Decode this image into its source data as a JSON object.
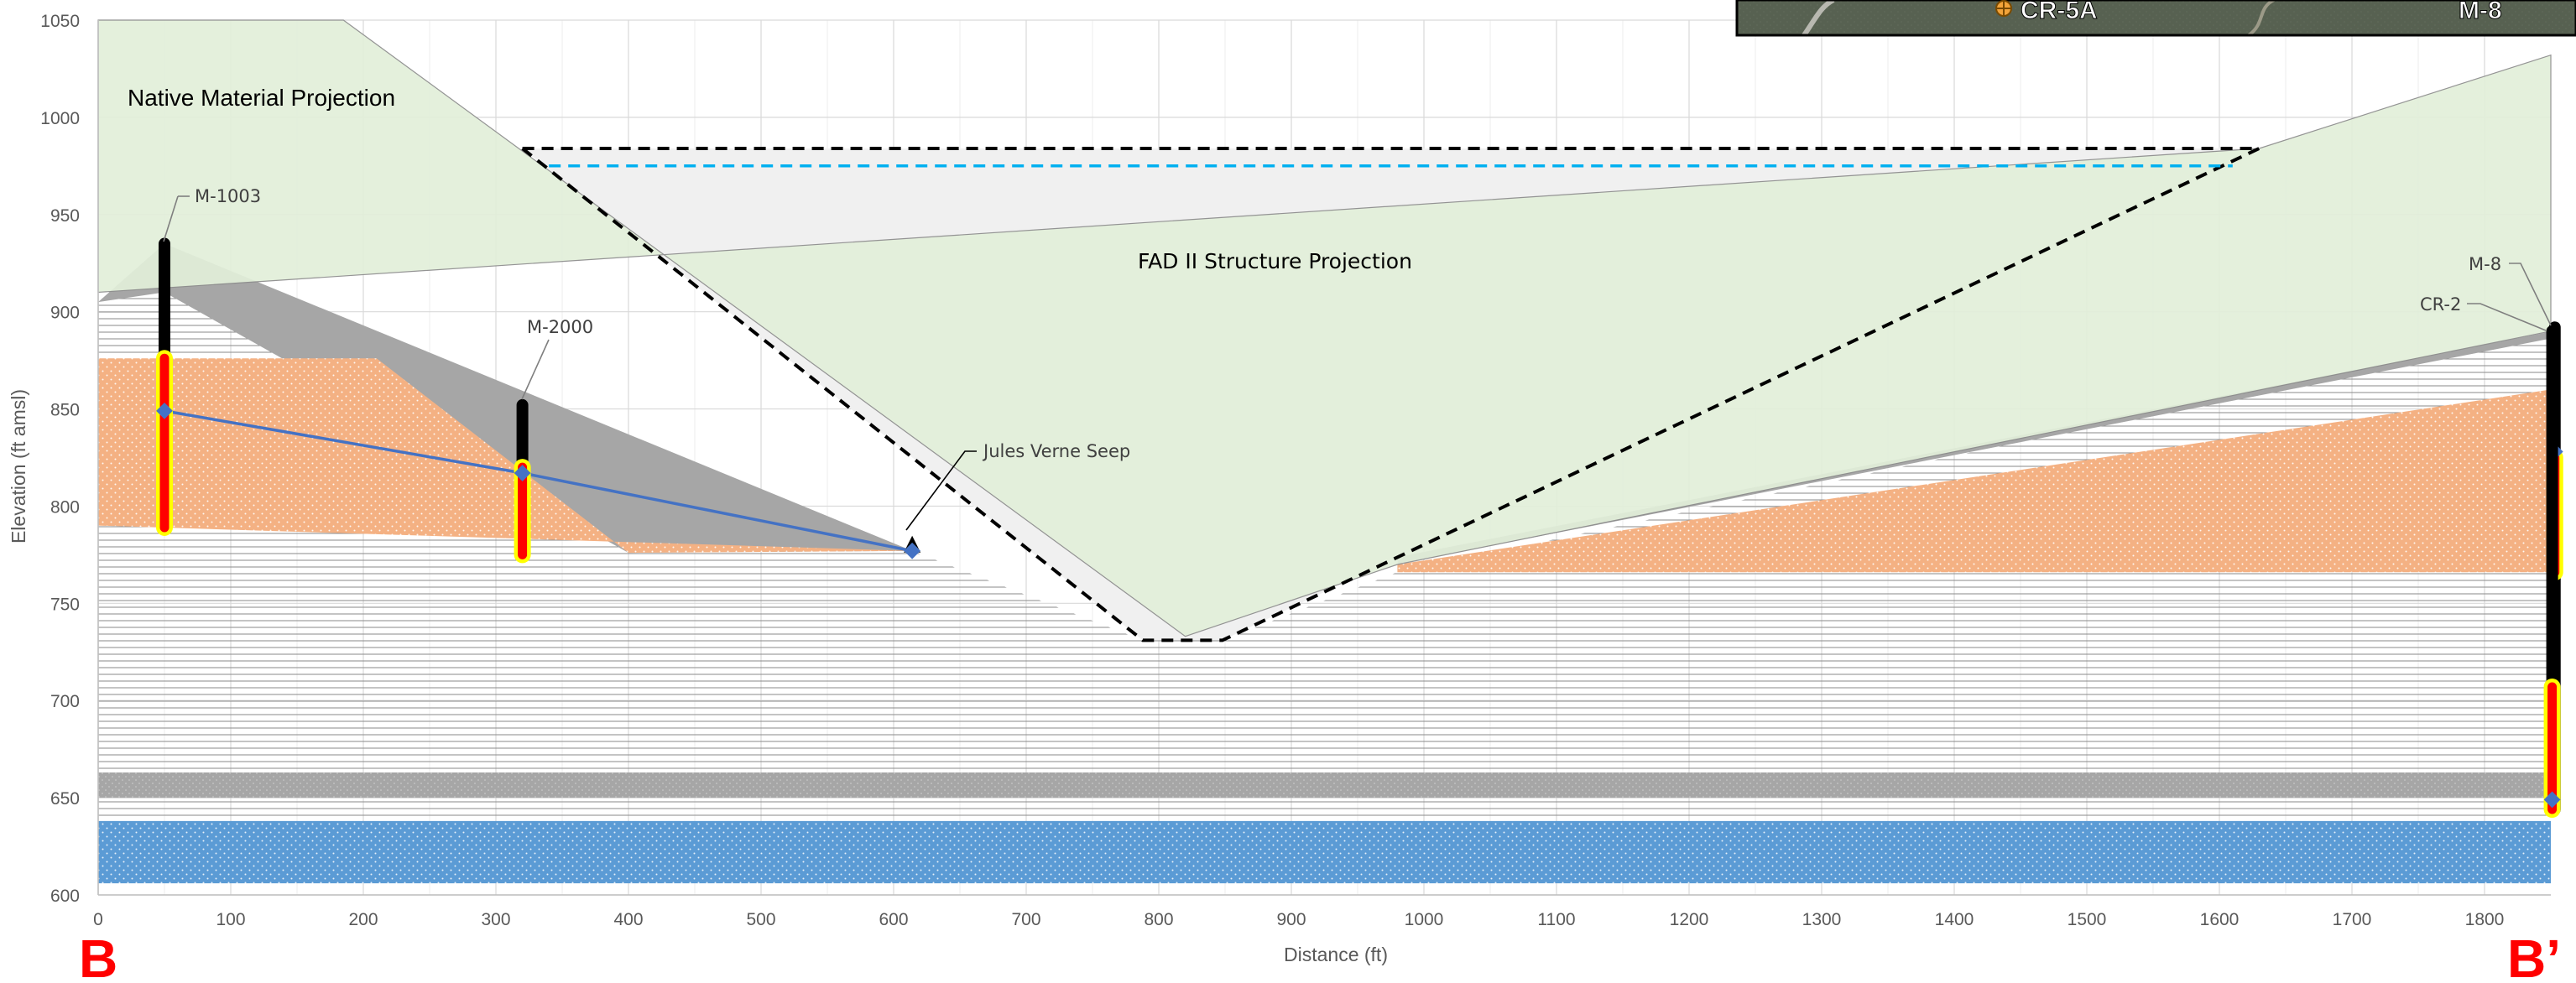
{
  "chart_data": {
    "type": "cross-section",
    "xlabel": "Distance (ft)",
    "ylabel": "Elevation (ft amsl)",
    "xlim": [
      0,
      1850
    ],
    "ylim": [
      600,
      1050
    ],
    "x_ticks": [
      0,
      100,
      200,
      300,
      400,
      500,
      600,
      700,
      800,
      900,
      1000,
      1100,
      1200,
      1300,
      1400,
      1500,
      1600,
      1700,
      1800
    ],
    "y_ticks": [
      600,
      650,
      700,
      750,
      800,
      850,
      900,
      950,
      1000,
      1050
    ],
    "grid": true,
    "section_start_label": "B",
    "section_end_label": "B’",
    "annotations": {
      "native_projection": "Native Material Projection",
      "fad_projection": "FAD II Structure Projection",
      "seep": "Jules Verne Seep"
    },
    "wells": [
      {
        "name": "M-1003",
        "x": 50,
        "top": 935,
        "bottom": 789,
        "screen_top": 876,
        "screen_bottom": 789,
        "water_level": 849
      },
      {
        "name": "M-2000",
        "x": 320,
        "top": 852,
        "bottom": 775,
        "screen_top": 820,
        "screen_bottom": 775,
        "water_level": 817
      },
      {
        "name": "M-8",
        "x": 1853,
        "top": 892,
        "bottom": 644,
        "screen_top": 825,
        "screen_bottom": 766,
        "water_level": 828
      },
      {
        "name": "CR-2",
        "x": 1851,
        "top": 890,
        "bottom": 644,
        "screen_top": 707,
        "screen_bottom": 644,
        "water_level": 649
      }
    ],
    "seep_point": {
      "x": 614,
      "y": 777
    },
    "water_table": [
      [
        50,
        849
      ],
      [
        320,
        817
      ],
      [
        614,
        777
      ]
    ],
    "fad_outline": [
      [
        320,
        984
      ],
      [
        788,
        731
      ],
      [
        848,
        731
      ],
      [
        1630,
        984
      ]
    ],
    "fad_water_line": [
      [
        340,
        975
      ],
      [
        1610,
        975
      ]
    ],
    "native_material": [
      [
        0,
        910
      ],
      [
        0,
        1050
      ],
      [
        185,
        1050
      ],
      [
        820,
        733
      ],
      [
        980,
        770
      ],
      [
        1850,
        890
      ],
      [
        1850,
        1032
      ],
      [
        1630,
        984
      ]
    ],
    "units": [
      {
        "name": "orange sand",
        "top": [
          [
            0,
            876
          ],
          [
            210,
            876
          ],
          [
            400,
            776
          ],
          [
            614,
            777
          ]
        ],
        "bottom": [
          [
            0,
            790
          ],
          [
            614,
            777
          ]
        ]
      },
      {
        "name": "orange sand east",
        "top": [
          [
            980,
            770
          ],
          [
            1850,
            860
          ]
        ],
        "bottom": [
          [
            980,
            766
          ],
          [
            1850,
            766
          ]
        ]
      },
      {
        "name": "gray clay",
        "top": [
          [
            0,
            663
          ],
          [
            1850,
            663
          ]
        ],
        "bottom": [
          [
            0,
            650
          ],
          [
            1850,
            650
          ]
        ]
      },
      {
        "name": "blue aquifer",
        "top": [
          [
            0,
            638
          ],
          [
            1850,
            638
          ]
        ],
        "bottom": [
          [
            0,
            606
          ],
          [
            1850,
            606
          ]
        ]
      }
    ],
    "inset_labels": [
      "CR-5A",
      "M-8"
    ]
  }
}
